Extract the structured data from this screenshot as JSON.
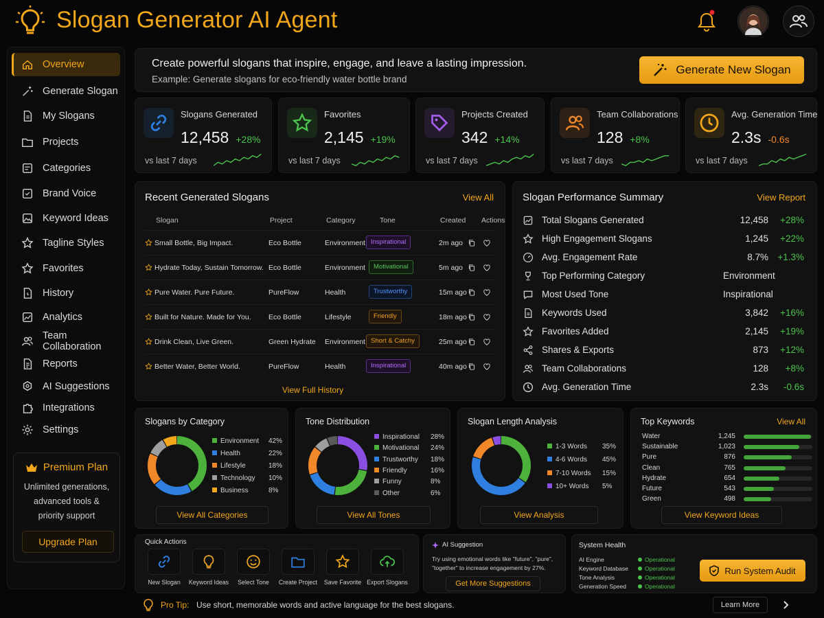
{
  "app": {
    "title": "Slogan Generator AI Agent"
  },
  "header": {
    "bell_icon": "bell-icon",
    "avatar_icon": "user-avatar",
    "team_icon": "team-icon"
  },
  "sidebar": {
    "items": [
      {
        "label": "Overview",
        "icon": "home-icon"
      },
      {
        "label": "Generate Slogan",
        "icon": "magic-wand-icon"
      },
      {
        "label": "My Slogans",
        "icon": "document-icon"
      },
      {
        "label": "Projects",
        "icon": "folder-icon"
      },
      {
        "label": "Categories",
        "icon": "categories-icon"
      },
      {
        "label": "Brand Voice",
        "icon": "brand-voice-icon"
      },
      {
        "label": "Keyword Ideas",
        "icon": "image-icon"
      },
      {
        "label": "Tagline Styles",
        "icon": "star-icon"
      },
      {
        "label": "Favorites",
        "icon": "star-icon"
      },
      {
        "label": "History",
        "icon": "history-icon"
      },
      {
        "label": "Analytics",
        "icon": "analytics-icon"
      },
      {
        "label": "Team Collaboration",
        "icon": "team-icon"
      },
      {
        "label": "Reports",
        "icon": "report-icon"
      },
      {
        "label": "AI Suggestions",
        "icon": "ai-icon"
      },
      {
        "label": "Integrations",
        "icon": "puzzle-icon"
      },
      {
        "label": "Settings",
        "icon": "gear-icon"
      }
    ],
    "premium": {
      "title": "Premium Plan",
      "description_line1": "Unlimited generations,",
      "description_line2": "advanced tools &",
      "description_line3": "priority support",
      "button": "Upgrade Plan"
    }
  },
  "hero": {
    "headline": "Create powerful slogans that inspire, engage, and leave a lasting impression.",
    "example": "Example: Generate slogans for eco-friendly water bottle brand",
    "button": "Generate New Slogan"
  },
  "stats": [
    {
      "label": "Slogans Generated",
      "value": "12,458",
      "change": "+28%",
      "sub": "vs last 7 days",
      "color": "#2f7fe0"
    },
    {
      "label": "Favorites",
      "value": "2,145",
      "change": "+19%",
      "sub": "vs last 7 days",
      "color": "#4cc34c"
    },
    {
      "label": "Projects Created",
      "value": "342",
      "change": "+14%",
      "sub": "vs last 7 days",
      "color": "#a55cf0"
    },
    {
      "label": "Team Collaborations",
      "value": "128",
      "change": "+8%",
      "sub": "vs last 7 days",
      "color": "#f0882a"
    },
    {
      "label": "Avg. Generation Time",
      "value": "2.3s",
      "change": "-0.6s",
      "sub": "vs last 7 days",
      "color": "#f2a71b"
    }
  ],
  "recent": {
    "title": "Recent Generated Slogans",
    "view_all": "View All",
    "columns": [
      "Slogan",
      "Project",
      "Category",
      "Tone",
      "Created",
      "Actions"
    ],
    "rows": [
      {
        "slogan": "Small Bottle, Big Impact.",
        "project": "Eco Bottle",
        "category": "Environment",
        "tone": "Inspirational",
        "created": "2m ago"
      },
      {
        "slogan": "Hydrate Today, Sustain Tomorrow.",
        "project": "Eco Bottle",
        "category": "Environment",
        "tone": "Motivational",
        "created": "5m ago"
      },
      {
        "slogan": "Pure Water. Pure Future.",
        "project": "PureFlow",
        "category": "Health",
        "tone": "Trustworthy",
        "created": "15m ago"
      },
      {
        "slogan": "Built for Nature. Made for You.",
        "project": "Eco Bottle",
        "category": "Lifestyle",
        "tone": "Friendly",
        "created": "18m ago"
      },
      {
        "slogan": "Drink Clean, Live Green.",
        "project": "Green Hydrate",
        "category": "Environment",
        "tone": "Short & Catchy",
        "created": "25m ago"
      },
      {
        "slogan": "Better Water, Better World.",
        "project": "PureFlow",
        "category": "Health",
        "tone": "Inspirational",
        "created": "40m ago"
      }
    ],
    "footer": "View Full History"
  },
  "performance": {
    "title": "Slogan Performance Summary",
    "link": "View Report",
    "rows": [
      {
        "label": "Total Slogans Generated",
        "value": "12,458",
        "change": "+28%"
      },
      {
        "label": "High Engagement Slogans",
        "value": "1,245",
        "change": "+22%"
      },
      {
        "label": "Avg. Engagement Rate",
        "value": "8.7%",
        "change": "+1.3%"
      },
      {
        "label": "Top Performing Category",
        "value": "Environment",
        "change": ""
      },
      {
        "label": "Most Used Tone",
        "value": "Inspirational",
        "change": ""
      },
      {
        "label": "Keywords Used",
        "value": "3,842",
        "change": "+16%"
      },
      {
        "label": "Favorites Added",
        "value": "2,145",
        "change": "+19%"
      },
      {
        "label": "Shares & Exports",
        "value": "873",
        "change": "+12%"
      },
      {
        "label": "Team Collaborations",
        "value": "128",
        "change": "+8%"
      },
      {
        "label": "Avg. Generation Time",
        "value": "2.3s",
        "change": "-0.6s"
      }
    ]
  },
  "chart_data": [
    {
      "type": "pie",
      "title": "Slogans by Category",
      "categories": [
        "Environment",
        "Health",
        "Lifestyle",
        "Technology",
        "Business"
      ],
      "values": [
        42,
        22,
        18,
        10,
        8
      ],
      "labels": [
        "42%",
        "22%",
        "18%",
        "10%",
        "8%"
      ],
      "colors": [
        "#4cb23c",
        "#2f7fe0",
        "#f0882a",
        "#9e9e9e",
        "#f2a71b"
      ],
      "button": "View All Categories"
    },
    {
      "type": "pie",
      "title": "Tone Distribution",
      "categories": [
        "Inspirational",
        "Motivational",
        "Trustworthy",
        "Friendly",
        "Funny",
        "Other"
      ],
      "values": [
        28,
        24,
        18,
        16,
        8,
        6
      ],
      "labels": [
        "28%",
        "24%",
        "18%",
        "16%",
        "8%",
        "6%"
      ],
      "colors": [
        "#8a4fe0",
        "#4cb23c",
        "#2f7fe0",
        "#f0882a",
        "#9e9e9e",
        "#5a5a5a"
      ],
      "button": "View All Tones"
    },
    {
      "type": "pie",
      "title": "Slogan Length Analysis",
      "categories": [
        "1-3 Words",
        "4-6 Words",
        "7-10 Words",
        "10+ Words"
      ],
      "values": [
        35,
        45,
        15,
        5
      ],
      "labels": [
        "35%",
        "45%",
        "15%",
        "5%"
      ],
      "colors": [
        "#4cb23c",
        "#2f7fe0",
        "#f0882a",
        "#8a4fe0"
      ],
      "button": "View Analysis"
    },
    {
      "type": "bar",
      "title": "Top Keywords",
      "categories": [
        "Water",
        "Sustainable",
        "Pure",
        "Clean",
        "Hydrate",
        "Future",
        "Green"
      ],
      "values": [
        1245,
        1023,
        876,
        765,
        654,
        543,
        498
      ],
      "labels": [
        "1,245",
        "1,023",
        "876",
        "765",
        "654",
        "543",
        "498"
      ],
      "link": "View All",
      "button": "View Keyword Ideas"
    }
  ],
  "quick_actions": {
    "title": "Quick Actions",
    "items": [
      {
        "label": "New Slogan",
        "icon": "link-icon",
        "color": "#2f7fe0"
      },
      {
        "label": "Keyword Ideas",
        "icon": "lightbulb-icon",
        "color": "#f2a71b"
      },
      {
        "label": "Select Tone",
        "icon": "smile-icon",
        "color": "#f2a71b"
      },
      {
        "label": "Create Project",
        "icon": "folder-icon",
        "color": "#2f7fe0"
      },
      {
        "label": "Save Favorite",
        "icon": "star-icon",
        "color": "#f2a71b"
      },
      {
        "label": "Export Slogans",
        "icon": "cloud-upload-icon",
        "color": "#4cc34c"
      }
    ]
  },
  "ai_suggestion": {
    "title": "AI Suggestion",
    "text_line1": "Try using emotional words like \"future\", \"pure\",",
    "text_line2": "\"together\" to increase engagement by 27%.",
    "button": "Get More Suggestions"
  },
  "system_health": {
    "title": "System Health",
    "rows": [
      {
        "name": "AI Engine",
        "status": "Operational"
      },
      {
        "name": "Keyword Database",
        "status": "Operational"
      },
      {
        "name": "Tone Analysis",
        "status": "Operational"
      },
      {
        "name": "Generation Speed",
        "status": "Operational"
      }
    ],
    "button": "Run System Audit"
  },
  "tip": {
    "label": "Pro Tip:",
    "text": "Use short, memorable words and active language for the best slogans.",
    "link": "Learn More"
  }
}
